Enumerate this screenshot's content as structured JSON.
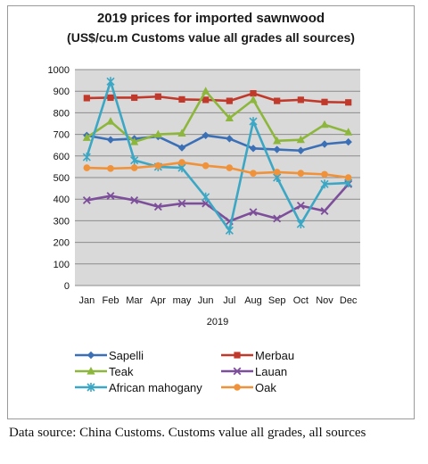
{
  "chart_data": {
    "type": "line",
    "title": "2019 prices for imported sawnwood",
    "subtitle": "(US$/cu.m Customs value all grades all sources)",
    "xlabel": "2019",
    "ylabel": "",
    "ylim": [
      0,
      1000
    ],
    "yticks": [
      0,
      100,
      200,
      300,
      400,
      500,
      600,
      700,
      800,
      900,
      1000
    ],
    "grid": true,
    "legend_position": "bottom",
    "categories": [
      "Jan",
      "Feb",
      "Mar",
      "Apr",
      "may",
      "Jun",
      "Jul",
      "Aug",
      "Sep",
      "Oct",
      "Nov",
      "Dec"
    ],
    "series": [
      {
        "name": "Sapelli",
        "color": "#3B6FB6",
        "marker": "diamond",
        "values": [
          695,
          675,
          680,
          690,
          638,
          695,
          680,
          635,
          630,
          625,
          655,
          665
        ]
      },
      {
        "name": "Merbau",
        "color": "#C0392B",
        "marker": "square",
        "values": [
          868,
          870,
          870,
          875,
          862,
          860,
          855,
          890,
          855,
          860,
          850,
          848
        ]
      },
      {
        "name": "Teak",
        "color": "#8DB63C",
        "marker": "triangle",
        "values": [
          685,
          760,
          665,
          700,
          705,
          900,
          775,
          860,
          670,
          675,
          745,
          710
        ]
      },
      {
        "name": "Lauan",
        "color": "#7D4E9A",
        "marker": "x",
        "values": [
          395,
          415,
          395,
          365,
          380,
          380,
          298,
          340,
          310,
          370,
          345,
          470
        ]
      },
      {
        "name": "African mahogany",
        "color": "#3BA7C4",
        "marker": "star",
        "values": [
          595,
          945,
          580,
          550,
          545,
          410,
          255,
          760,
          500,
          285,
          470,
          475
        ]
      },
      {
        "name": "Oak",
        "color": "#F0923A",
        "marker": "circle",
        "values": [
          545,
          542,
          545,
          555,
          570,
          555,
          545,
          520,
          525,
          520,
          515,
          500
        ]
      }
    ]
  },
  "caption": "Data source: China Customs. Customs value all grades, all sources"
}
